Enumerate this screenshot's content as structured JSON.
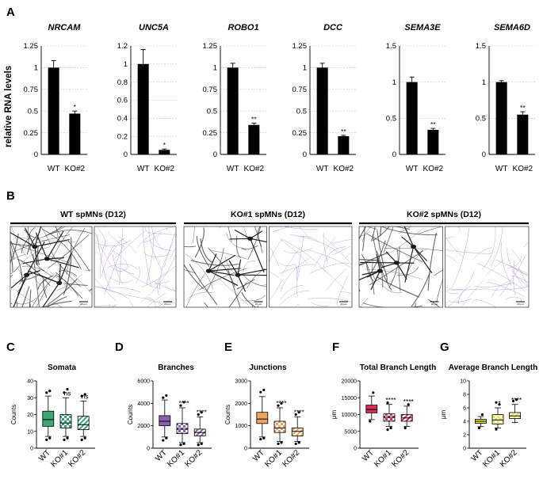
{
  "panels": {
    "A": "A",
    "B": "B",
    "C": "C",
    "D": "D",
    "E": "E",
    "F": "F",
    "G": "G"
  },
  "panel_a_ylabel": "relative RNA levels",
  "panel_b_conditions": [
    {
      "label": "WT spMNs (D12)",
      "scale_left": "20 μm",
      "scale_right": "20 μm"
    },
    {
      "label": "KO#1 spMNs (D12)",
      "scale_left": "20 μm",
      "scale_right": "20 μm"
    },
    {
      "label": "KO#2 spMNs (D12)",
      "scale_left": "20 μm",
      "scale_right": "20 μm"
    }
  ],
  "colors": {
    "bar": "#000000",
    "neuron_image": "#555555",
    "skeleton": "#b49bd6",
    "somata": "#3aa674",
    "branches": "#8c5fb5",
    "junctions": "#f0a35c",
    "total_branch_length": "#d82c55",
    "average_branch_length": "#e8e84a"
  },
  "chart_data": [
    {
      "type": "bar",
      "title": "NRCAM",
      "categories": [
        "WT",
        "KO#2"
      ],
      "values": [
        1.0,
        0.47
      ],
      "errors": [
        0.08,
        0.03
      ],
      "significance": [
        "",
        "*"
      ],
      "ylabel": "relative RNA levels",
      "ylim": [
        0,
        1.25
      ],
      "yticks": [
        "0",
        "0.25",
        "0.5",
        "0.75",
        "1",
        "1.25"
      ],
      "grid": true
    },
    {
      "type": "bar",
      "title": "UNC5A",
      "categories": [
        "WT",
        "KO#2"
      ],
      "values": [
        1.0,
        0.05
      ],
      "errors": [
        0.16,
        0.01
      ],
      "significance": [
        "",
        "*"
      ],
      "ylim": [
        0,
        1.2
      ],
      "yticks": [
        "0",
        "0.2",
        "0.4",
        "0.6",
        "0.8",
        "1",
        "1.2"
      ],
      "grid": true
    },
    {
      "type": "bar",
      "title": "ROBO1",
      "categories": [
        "WT",
        "KO#2"
      ],
      "values": [
        1.0,
        0.34
      ],
      "errors": [
        0.05,
        0.02
      ],
      "significance": [
        "",
        "**"
      ],
      "ylim": [
        0,
        1.25
      ],
      "yticks": [
        "0",
        "0.25",
        "0.5",
        "0.75",
        "1",
        "1.25"
      ],
      "grid": true
    },
    {
      "type": "bar",
      "title": "DCC",
      "categories": [
        "WT",
        "KO#2"
      ],
      "values": [
        1.0,
        0.21
      ],
      "errors": [
        0.05,
        0.01
      ],
      "significance": [
        "",
        "**"
      ],
      "ylim": [
        0,
        1.25
      ],
      "yticks": [
        "0",
        "0.25",
        "0.5",
        "0.75",
        "1",
        "1.25"
      ],
      "grid": true
    },
    {
      "type": "bar",
      "title": "SEMA3E",
      "categories": [
        "WT",
        "KO#2"
      ],
      "values": [
        1.0,
        0.34
      ],
      "errors": [
        0.07,
        0.02
      ],
      "significance": [
        "",
        "**"
      ],
      "ylim": [
        0,
        1.5
      ],
      "yticks": [
        "0",
        "0.5",
        "1",
        "1.5"
      ],
      "grid": true
    },
    {
      "type": "bar",
      "title": "SEMA6D",
      "categories": [
        "WT",
        "KO#2"
      ],
      "values": [
        1.0,
        0.55
      ],
      "errors": [
        0.02,
        0.04
      ],
      "significance": [
        "",
        "**"
      ],
      "ylim": [
        0,
        1.5
      ],
      "yticks": [
        "0",
        "0.5",
        "1",
        "1.5"
      ],
      "grid": true
    },
    {
      "type": "box",
      "title": "Somata",
      "ylabel": "Counts",
      "categories": [
        "WT",
        "KO#1",
        "KO#2"
      ],
      "ylim": [
        0,
        40
      ],
      "yticks": [
        "0",
        "10",
        "20",
        "30",
        "40"
      ],
      "significance": [
        "",
        "ns",
        "ns"
      ],
      "boxes": [
        {
          "min": 7,
          "q1": 13,
          "median": 17,
          "q3": 22,
          "max": 31
        },
        {
          "min": 7,
          "q1": 12,
          "median": 15,
          "q3": 20,
          "max": 30
        },
        {
          "min": 7,
          "q1": 11,
          "median": 14,
          "q3": 19,
          "max": 28
        }
      ],
      "outliers": [
        [
          5,
          6,
          33,
          34
        ],
        [
          5,
          6,
          33,
          35
        ],
        [
          5,
          6,
          31,
          32
        ]
      ]
    },
    {
      "type": "box",
      "title": "Branches",
      "ylabel": "Counts",
      "categories": [
        "WT",
        "KO#1",
        "KO#2"
      ],
      "ylim": [
        0,
        6000
      ],
      "yticks": [
        "0",
        "2000",
        "4000",
        "6000"
      ],
      "significance": [
        "",
        "****",
        "****"
      ],
      "boxes": [
        {
          "min": 1000,
          "q1": 2000,
          "median": 2400,
          "q3": 2900,
          "max": 4300
        },
        {
          "min": 500,
          "q1": 1300,
          "median": 1700,
          "q3": 2200,
          "max": 3600
        },
        {
          "min": 500,
          "q1": 1100,
          "median": 1400,
          "q3": 1700,
          "max": 2800
        }
      ],
      "outliers": [
        [
          700,
          900,
          4500,
          4700
        ],
        [
          300,
          400,
          3800,
          4100
        ],
        [
          300,
          400,
          3000,
          3200
        ]
      ]
    },
    {
      "type": "box",
      "title": "Junctions",
      "ylabel": "Counts",
      "categories": [
        "WT",
        "KO#1",
        "KO#2"
      ],
      "ylim": [
        0,
        3000
      ],
      "yticks": [
        "0",
        "1000",
        "2000",
        "3000"
      ],
      "significance": [
        "",
        "****",
        "****"
      ],
      "boxes": [
        {
          "min": 500,
          "q1": 1100,
          "median": 1300,
          "q3": 1600,
          "max": 2300
        },
        {
          "min": 300,
          "q1": 700,
          "median": 900,
          "q3": 1200,
          "max": 1800
        },
        {
          "min": 300,
          "q1": 550,
          "median": 750,
          "q3": 900,
          "max": 1400
        }
      ],
      "outliers": [
        [
          400,
          450,
          2500,
          2600
        ],
        [
          200,
          250,
          1900,
          2000
        ],
        [
          200,
          250,
          1500,
          1600
        ]
      ]
    },
    {
      "type": "box",
      "title": "Total Branch Length",
      "ylabel": "μm",
      "categories": [
        "WT",
        "KO#1",
        "KO#2"
      ],
      "ylim": [
        0,
        20000
      ],
      "yticks": [
        "0",
        "5000",
        "10000",
        "15000",
        "20000"
      ],
      "significance": [
        "",
        "****",
        "****"
      ],
      "boxes": [
        {
          "min": 8500,
          "q1": 10500,
          "median": 11500,
          "q3": 12800,
          "max": 15500
        },
        {
          "min": 6500,
          "q1": 8000,
          "median": 9200,
          "q3": 10200,
          "max": 13000
        },
        {
          "min": 6500,
          "q1": 8000,
          "median": 9000,
          "q3": 10000,
          "max": 12500
        }
      ],
      "outliers": [
        [
          8000,
          16500
        ],
        [
          5500,
          6000,
          13500
        ],
        [
          6000,
          13000
        ]
      ]
    },
    {
      "type": "box",
      "title": "Average Branch Length",
      "ylabel": "μm",
      "categories": [
        "WT",
        "KO#1",
        "KO#2"
      ],
      "ylim": [
        0,
        10
      ],
      "yticks": [
        "0",
        "2",
        "4",
        "6",
        "8",
        "10"
      ],
      "significance": [
        "",
        "*",
        "****"
      ],
      "boxes": [
        {
          "min": 3.2,
          "q1": 3.7,
          "median": 4.0,
          "q3": 4.3,
          "max": 4.7
        },
        {
          "min": 3.0,
          "q1": 3.6,
          "median": 4.2,
          "q3": 5.0,
          "max": 6.0
        },
        {
          "min": 3.8,
          "q1": 4.4,
          "median": 4.8,
          "q3": 5.3,
          "max": 6.5
        }
      ],
      "outliers": [
        [
          3.0,
          5.0
        ],
        [
          2.8,
          6.5,
          6.8
        ],
        [
          7.0,
          7.2
        ]
      ]
    }
  ]
}
